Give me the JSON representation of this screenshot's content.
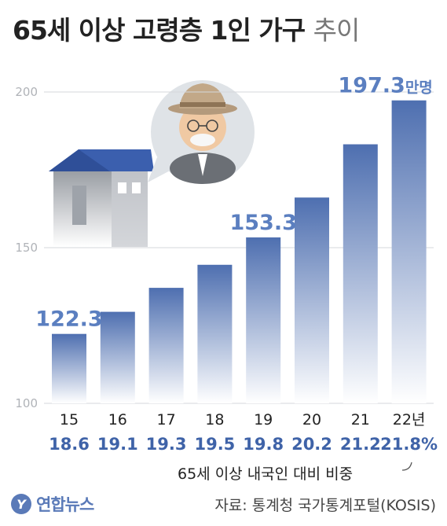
{
  "title": {
    "main": "65세 이상 고령층 1인 가구",
    "light": "추이"
  },
  "chart_data": {
    "type": "bar",
    "categories": [
      "15",
      "16",
      "17",
      "18",
      "19",
      "20",
      "21",
      "22년"
    ],
    "values": [
      122.3,
      129.4,
      137.1,
      144.5,
      153.3,
      166.1,
      183.2,
      197.3
    ],
    "data_labels": [
      {
        "index": 0,
        "text": "122.3",
        "unit": ""
      },
      {
        "index": 4,
        "text": "153.3",
        "unit": ""
      },
      {
        "index": 7,
        "text": "197.3",
        "unit": "만명"
      }
    ],
    "share": [
      "18.6",
      "19.1",
      "19.3",
      "19.5",
      "19.8",
      "20.2",
      "21.2",
      "21.8%"
    ],
    "share_label": "65세 이상 내국인 대비 비중",
    "ylim": [
      100,
      200
    ],
    "yticks": [
      100,
      150,
      200
    ],
    "grid": true,
    "colors": {
      "bar_top": "#4e6fb0",
      "bar_bottom": "#ffffff",
      "label": "#5b7fc0",
      "share": "#3f63a8"
    }
  },
  "footer": {
    "logo_text": "연합뉴스",
    "source": "자료: 통계청 국가통계포털(KOSIS)"
  }
}
